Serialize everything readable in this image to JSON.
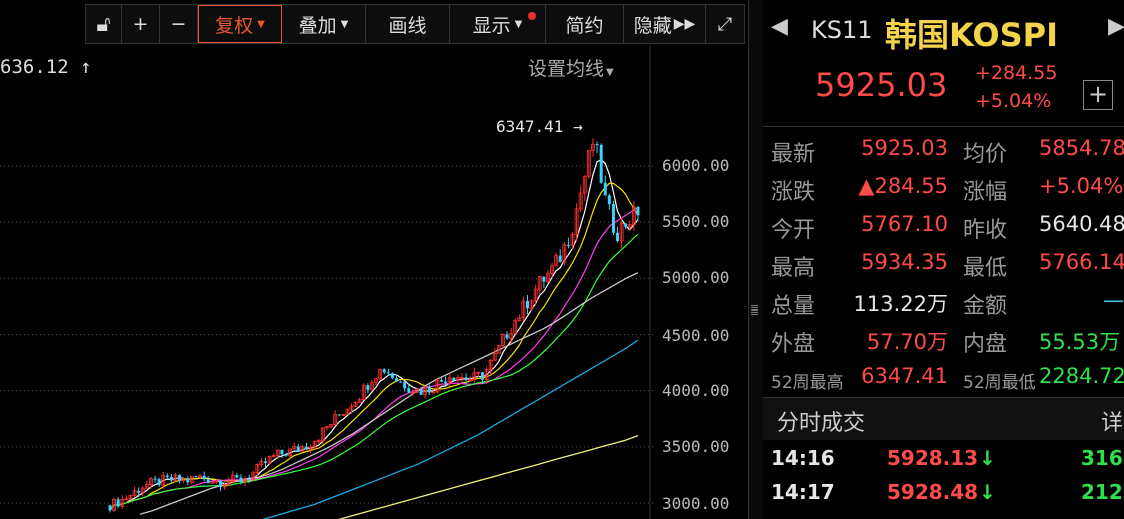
{
  "toolbar": {
    "unlock_icon": "unlock-icon",
    "zoom_in_label": "+",
    "zoom_out_label": "−",
    "restore_label": "复权",
    "overlay_label": "叠加",
    "draw_label": "画线",
    "display_label": "显示",
    "simple_label": "简约",
    "hide_label": "隐藏",
    "hide_icon": "double-chevron-right-icon",
    "fullscreen_icon": "expand-icon"
  },
  "chart_header": {
    "top_left_value": "636.12 ↑",
    "ma_setting_label": "设置均线"
  },
  "chart_data": {
    "type": "line",
    "title": "",
    "ylim": [
      2900,
      6600
    ],
    "y_ticks": [
      "6000.00",
      "5500.00",
      "5000.00",
      "4500.00",
      "4000.00",
      "3500.00",
      "3000.00"
    ],
    "annotations": [
      {
        "text": "6347.41",
        "arrow": "→"
      }
    ],
    "colors": {
      "up": "#ff3030",
      "down": "#3cd2ff",
      "ma5": "#ffffff",
      "ma10": "#f2e300",
      "ma20": "#ff3cf0",
      "ma30": "#3cff3c",
      "ma60": "#c8c8c8",
      "ma120": "#1ea8e0",
      "ma250": "#f0f080"
    },
    "close": [
      2980,
      3020,
      3080,
      3150,
      3180,
      3200,
      3210,
      3200,
      3230,
      3210,
      3190,
      3200,
      3210,
      3260,
      3350,
      3420,
      3450,
      3480,
      3520,
      3600,
      3700,
      3800,
      3900,
      4000,
      4150,
      4200,
      4100,
      4050,
      4000,
      4020,
      4080,
      4150,
      4120,
      4100,
      4150,
      4300,
      4500,
      4650,
      4800,
      4950,
      5050,
      5200,
      5450,
      5850,
      6250,
      5700,
      5400,
      5500,
      5600
    ],
    "series_ma60": [
      2900,
      2930,
      2970,
      3010,
      3050,
      3090,
      3130,
      3160,
      3190,
      3210,
      3230,
      3260,
      3300,
      3350,
      3400,
      3450,
      3500,
      3560,
      3620,
      3690,
      3760,
      3830,
      3900,
      3970,
      4040,
      4100,
      4150,
      4200,
      4250,
      4300,
      4350,
      4400,
      4450,
      4500,
      4550,
      4610,
      4680,
      4750,
      4820,
      4880,
      4940,
      5000,
      5050
    ],
    "series_ma120": [
      2700,
      2720,
      2750,
      2780,
      2810,
      2840,
      2870,
      2900,
      2930,
      2960,
      2990,
      3030,
      3070,
      3110,
      3150,
      3190,
      3230,
      3270,
      3310,
      3350,
      3400,
      3450,
      3500,
      3550,
      3600,
      3660,
      3720,
      3780,
      3840,
      3900,
      3960,
      4020,
      4080,
      4140,
      4200,
      4260,
      4320,
      4380,
      4450
    ],
    "series_ma250": [
      2700,
      2720,
      2740,
      2760,
      2780,
      2810,
      2840,
      2870,
      2900,
      2930,
      2960,
      2990,
      3020,
      3050,
      3080,
      3110,
      3140,
      3170,
      3200,
      3230,
      3260,
      3290,
      3320,
      3350,
      3380,
      3410,
      3440,
      3470,
      3500,
      3530,
      3560,
      3600
    ]
  },
  "quote": {
    "prev_icon": "triangle-left-icon",
    "next_icon": "triangle-right-icon",
    "code": "KS11",
    "name": "韩国KOSPI",
    "last_price": "5925.03",
    "change_abs": "+284.55",
    "change_pct": "+5.04%",
    "add_label": "+",
    "rows": [
      {
        "l1": "最新",
        "v1": "5925.03",
        "l2": "均价",
        "v2": "5854.78"
      },
      {
        "l1": "涨跌",
        "v1": "▲284.55",
        "l2": "涨幅",
        "v2": "+5.04%"
      },
      {
        "l1": "今开",
        "v1": "5767.10",
        "l2": "昨收",
        "v2": "5640.48"
      },
      {
        "l1": "最高",
        "v1": "5934.35",
        "l2": "最低",
        "v2": "5766.14"
      },
      {
        "l1": "总量",
        "v1": "113.22万",
        "l2": "金额",
        "v2": "—"
      },
      {
        "l1": "外盘",
        "v1": "57.70万",
        "l2": "内盘",
        "v2": "55.53万"
      },
      {
        "l1": "52周最高",
        "v1": "6347.41",
        "l2": "52周最低",
        "v2": "2284.72"
      }
    ],
    "ticks_title": "分时成交",
    "ticks_more": "详",
    "ticks": [
      {
        "time": "14:16",
        "price": "5928.13",
        "arrow": "↓",
        "volume": "316"
      },
      {
        "time": "14:17",
        "price": "5928.48",
        "arrow": "↓",
        "volume": "212"
      }
    ]
  }
}
